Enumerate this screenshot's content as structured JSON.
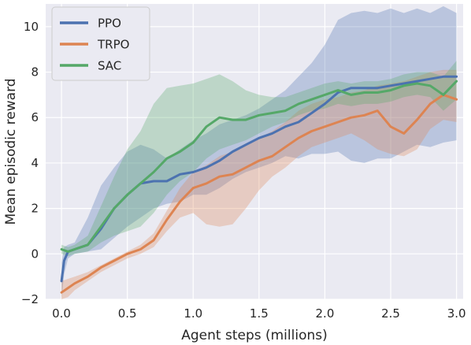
{
  "chart_data": {
    "type": "line",
    "xlabel": "Agent steps (millions)",
    "ylabel": "Mean episodic reward",
    "xlim": [
      -0.12,
      3.05
    ],
    "ylim": [
      -2,
      11
    ],
    "xticks": [
      0.0,
      0.5,
      1.0,
      1.5,
      2.0,
      2.5,
      3.0
    ],
    "xtick_labels": [
      "0.0",
      "0.5",
      "1.0",
      "1.5",
      "2.0",
      "2.5",
      "3.0"
    ],
    "yticks": [
      -2,
      0,
      2,
      4,
      6,
      8,
      10
    ],
    "ytick_labels": [
      "−2",
      "0",
      "2",
      "4",
      "6",
      "8",
      "10"
    ],
    "grid": true,
    "legend_position": "top-left",
    "background": "#eaeaf2",
    "series": [
      {
        "name": "PPO",
        "color": "#4c72b0",
        "x": [
          0.0,
          0.02,
          0.05,
          0.1,
          0.2,
          0.3,
          0.4,
          0.5,
          0.6,
          0.7,
          0.8,
          0.9,
          1.0,
          1.1,
          1.2,
          1.3,
          1.4,
          1.5,
          1.6,
          1.7,
          1.8,
          1.9,
          2.0,
          2.1,
          2.2,
          2.3,
          2.4,
          2.5,
          2.6,
          2.7,
          2.8,
          2.9,
          3.0
        ],
        "y": [
          -1.2,
          -0.3,
          0.1,
          0.2,
          0.4,
          1.1,
          2.0,
          2.6,
          3.1,
          3.2,
          3.2,
          3.5,
          3.6,
          3.8,
          4.1,
          4.5,
          4.8,
          5.1,
          5.3,
          5.6,
          5.8,
          6.2,
          6.6,
          7.1,
          7.3,
          7.3,
          7.3,
          7.4,
          7.5,
          7.6,
          7.7,
          7.8,
          7.8
        ],
        "upper": [
          -0.4,
          0.3,
          0.4,
          0.5,
          1.6,
          3.0,
          3.8,
          4.5,
          4.8,
          4.6,
          4.2,
          4.6,
          5.0,
          5.3,
          5.7,
          5.9,
          6.1,
          6.4,
          6.8,
          7.2,
          7.8,
          8.4,
          9.2,
          10.3,
          10.6,
          10.7,
          10.6,
          10.8,
          10.6,
          10.8,
          10.6,
          10.9,
          10.6
        ],
        "lower": [
          -2.0,
          -0.9,
          -0.2,
          0.0,
          0.1,
          0.2,
          0.7,
          1.2,
          1.6,
          2.0,
          2.2,
          2.3,
          2.6,
          2.6,
          2.9,
          3.3,
          3.6,
          3.8,
          4.0,
          4.3,
          4.2,
          4.4,
          4.4,
          4.5,
          4.1,
          4.0,
          4.2,
          4.2,
          4.5,
          4.8,
          4.7,
          4.9,
          5.0
        ]
      },
      {
        "name": "TRPO",
        "color": "#dd8452",
        "x": [
          0.0,
          0.05,
          0.1,
          0.2,
          0.3,
          0.4,
          0.5,
          0.6,
          0.7,
          0.8,
          0.9,
          1.0,
          1.1,
          1.2,
          1.3,
          1.4,
          1.5,
          1.6,
          1.7,
          1.8,
          1.9,
          2.0,
          2.1,
          2.2,
          2.3,
          2.4,
          2.5,
          2.6,
          2.7,
          2.8,
          2.9,
          3.0
        ],
        "y": [
          -1.7,
          -1.5,
          -1.3,
          -1.0,
          -0.6,
          -0.3,
          0.0,
          0.2,
          0.6,
          1.5,
          2.3,
          2.9,
          3.1,
          3.4,
          3.5,
          3.8,
          4.1,
          4.3,
          4.7,
          5.1,
          5.4,
          5.6,
          5.8,
          6.0,
          6.1,
          6.3,
          5.6,
          5.3,
          5.9,
          6.6,
          7.0,
          6.8
        ],
        "upper": [
          -1.2,
          -1.1,
          -1.0,
          -0.8,
          -0.5,
          -0.2,
          0.1,
          0.4,
          0.9,
          1.9,
          2.9,
          3.6,
          3.9,
          4.3,
          4.5,
          4.8,
          5.1,
          5.4,
          5.8,
          6.3,
          6.6,
          6.8,
          6.9,
          7.1,
          7.2,
          7.4,
          7.5,
          7.6,
          7.8,
          8.0,
          8.1,
          8.1
        ],
        "lower": [
          -2.0,
          -1.9,
          -1.6,
          -1.2,
          -0.8,
          -0.5,
          -0.2,
          0.0,
          0.3,
          1.0,
          1.6,
          1.8,
          1.3,
          1.2,
          1.3,
          2.0,
          2.8,
          3.4,
          3.8,
          4.3,
          4.7,
          4.9,
          5.1,
          5.3,
          5.0,
          4.6,
          4.4,
          4.3,
          4.6,
          5.5,
          5.9,
          5.8
        ]
      },
      {
        "name": "SAC",
        "color": "#55a868",
        "x": [
          0.0,
          0.05,
          0.1,
          0.2,
          0.3,
          0.4,
          0.5,
          0.6,
          0.7,
          0.8,
          0.9,
          1.0,
          1.1,
          1.2,
          1.3,
          1.4,
          1.5,
          1.6,
          1.7,
          1.8,
          1.9,
          2.0,
          2.1,
          2.2,
          2.3,
          2.4,
          2.5,
          2.6,
          2.7,
          2.8,
          2.9,
          3.0
        ],
        "y": [
          0.2,
          0.1,
          0.2,
          0.4,
          1.2,
          2.0,
          2.6,
          3.1,
          3.6,
          4.2,
          4.5,
          4.9,
          5.6,
          6.0,
          5.9,
          5.9,
          6.1,
          6.2,
          6.3,
          6.6,
          6.8,
          7.0,
          7.2,
          7.0,
          7.1,
          7.1,
          7.2,
          7.4,
          7.5,
          7.4,
          7.0,
          7.6
        ],
        "upper": [
          0.4,
          0.3,
          0.4,
          0.8,
          2.1,
          3.4,
          4.6,
          5.4,
          6.6,
          7.3,
          7.4,
          7.5,
          7.7,
          7.9,
          7.6,
          7.2,
          7.0,
          6.9,
          6.9,
          7.1,
          7.3,
          7.5,
          7.6,
          7.5,
          7.6,
          7.6,
          7.7,
          7.9,
          8.0,
          8.0,
          7.8,
          8.5
        ],
        "lower": [
          0.0,
          -0.1,
          0.0,
          0.1,
          0.5,
          0.8,
          1.0,
          1.2,
          1.8,
          2.6,
          3.2,
          3.6,
          4.2,
          4.6,
          4.8,
          5.0,
          5.3,
          5.6,
          5.8,
          6.1,
          6.3,
          6.4,
          6.6,
          6.5,
          6.6,
          6.6,
          6.7,
          6.9,
          7.0,
          6.9,
          6.3,
          6.8
        ]
      }
    ]
  }
}
